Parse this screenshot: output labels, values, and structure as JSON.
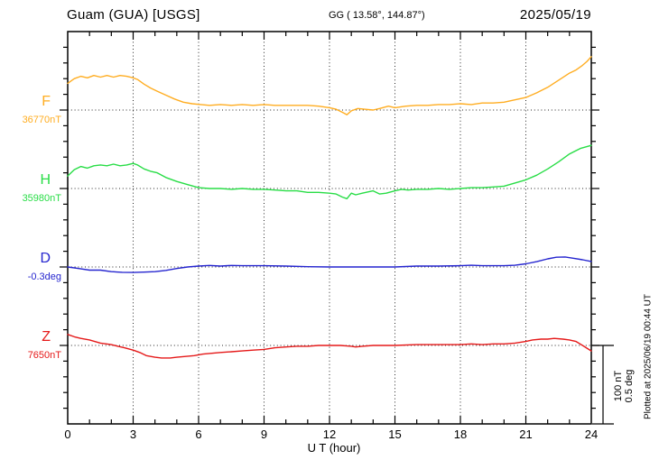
{
  "header": {
    "station": "Guam (GUA)  [USGS]",
    "coords": "GG ( 13.58°, 144.87°)",
    "date": "2025/05/19"
  },
  "scale_bar": {
    "line1": "100 nT",
    "line2": "0.5 deg"
  },
  "footer_note": "Plotted at 2025/06/19 00:44 UT",
  "chart_data": {
    "type": "line",
    "title": "Guam (GUA) [USGS]",
    "xlabel": "U T (hour)",
    "x_range": [
      0,
      24
    ],
    "x_ticks": [
      0,
      3,
      6,
      9,
      12,
      15,
      18,
      21,
      24
    ],
    "grid": "dotted vertical every 3 h, dotted horizontal at each trace reference level",
    "legend_position": "left margin, one colored label per trace",
    "scale_per_division": {
      "nT": 100,
      "deg": 0.5
    },
    "series": [
      {
        "name": "F",
        "reference_label": "36770nT",
        "unit": "nT",
        "color": "#FFAD21",
        "points": [
          [
            0,
            34
          ],
          [
            0.3,
            40
          ],
          [
            0.6,
            43
          ],
          [
            0.9,
            41
          ],
          [
            1.2,
            44
          ],
          [
            1.5,
            42
          ],
          [
            1.8,
            44
          ],
          [
            2.1,
            42
          ],
          [
            2.4,
            44
          ],
          [
            2.7,
            43
          ],
          [
            3.0,
            41
          ],
          [
            3.2,
            39
          ],
          [
            3.5,
            33
          ],
          [
            3.8,
            28
          ],
          [
            4.1,
            24
          ],
          [
            4.5,
            19
          ],
          [
            4.9,
            14
          ],
          [
            5.3,
            10
          ],
          [
            5.7,
            8
          ],
          [
            6.1,
            7
          ],
          [
            6.5,
            6
          ],
          [
            7,
            7
          ],
          [
            7.5,
            6
          ],
          [
            8,
            7
          ],
          [
            8.5,
            6
          ],
          [
            9,
            7
          ],
          [
            9.5,
            6
          ],
          [
            10,
            6
          ],
          [
            10.5,
            6
          ],
          [
            11,
            6
          ],
          [
            11.5,
            5
          ],
          [
            12,
            3
          ],
          [
            12.3,
            1
          ],
          [
            12.6,
            -3
          ],
          [
            12.8,
            -6
          ],
          [
            13,
            -1
          ],
          [
            13.3,
            2
          ],
          [
            13.6,
            1
          ],
          [
            14,
            0
          ],
          [
            14.3,
            2
          ],
          [
            14.7,
            5
          ],
          [
            15,
            3
          ],
          [
            15.5,
            5
          ],
          [
            16,
            6
          ],
          [
            16.5,
            6
          ],
          [
            17,
            7
          ],
          [
            17.5,
            7
          ],
          [
            18,
            8
          ],
          [
            18.5,
            7
          ],
          [
            19,
            9
          ],
          [
            19.5,
            9
          ],
          [
            20,
            10
          ],
          [
            20.5,
            13
          ],
          [
            21,
            16
          ],
          [
            21.5,
            22
          ],
          [
            22,
            29
          ],
          [
            22.5,
            38
          ],
          [
            23,
            47
          ],
          [
            23.3,
            51
          ],
          [
            23.6,
            57
          ],
          [
            23.8,
            62
          ],
          [
            24,
            68
          ]
        ]
      },
      {
        "name": "H",
        "reference_label": "35980nT",
        "unit": "nT",
        "color": "#28DD46",
        "points": [
          [
            0,
            16
          ],
          [
            0.3,
            24
          ],
          [
            0.6,
            28
          ],
          [
            0.9,
            26
          ],
          [
            1.2,
            29
          ],
          [
            1.5,
            30
          ],
          [
            1.8,
            29
          ],
          [
            2.1,
            31
          ],
          [
            2.4,
            29
          ],
          [
            2.7,
            30
          ],
          [
            3.0,
            32
          ],
          [
            3.2,
            30
          ],
          [
            3.5,
            25
          ],
          [
            3.8,
            22
          ],
          [
            4.1,
            20
          ],
          [
            4.5,
            14
          ],
          [
            5,
            9
          ],
          [
            5.5,
            5
          ],
          [
            6,
            1
          ],
          [
            6.5,
            0
          ],
          [
            7,
            0
          ],
          [
            7.5,
            -1
          ],
          [
            8,
            0
          ],
          [
            8.5,
            -1
          ],
          [
            9,
            -1
          ],
          [
            9.5,
            -2
          ],
          [
            10,
            -3
          ],
          [
            10.5,
            -3
          ],
          [
            11,
            -5
          ],
          [
            11.5,
            -5
          ],
          [
            12,
            -6
          ],
          [
            12.3,
            -7
          ],
          [
            12.6,
            -11
          ],
          [
            12.8,
            -13
          ],
          [
            13,
            -6
          ],
          [
            13.2,
            -8
          ],
          [
            13.5,
            -6
          ],
          [
            14,
            -3
          ],
          [
            14.3,
            -7
          ],
          [
            14.6,
            -6
          ],
          [
            15,
            -3
          ],
          [
            15.3,
            -1
          ],
          [
            15.6,
            -2
          ],
          [
            16,
            -1
          ],
          [
            16.5,
            -1
          ],
          [
            17,
            0
          ],
          [
            17.5,
            -1
          ],
          [
            18,
            0
          ],
          [
            18.5,
            1
          ],
          [
            19,
            1
          ],
          [
            19.5,
            2
          ],
          [
            20,
            3
          ],
          [
            20.5,
            7
          ],
          [
            21,
            11
          ],
          [
            21.5,
            17
          ],
          [
            22,
            25
          ],
          [
            22.5,
            34
          ],
          [
            23,
            44
          ],
          [
            23.5,
            51
          ],
          [
            24,
            55
          ]
        ]
      },
      {
        "name": "D",
        "reference_label": "-0.3deg",
        "unit": "deg",
        "color": "#2525CF",
        "points": [
          [
            0,
            0
          ],
          [
            0.5,
            -0.01
          ],
          [
            1,
            -0.02
          ],
          [
            1.5,
            -0.02
          ],
          [
            2,
            -0.03
          ],
          [
            2.5,
            -0.034
          ],
          [
            3,
            -0.035
          ],
          [
            3.5,
            -0.033
          ],
          [
            4,
            -0.03
          ],
          [
            4.5,
            -0.022
          ],
          [
            5,
            -0.01
          ],
          [
            5.5,
            0
          ],
          [
            6,
            0.006
          ],
          [
            6.5,
            0.01
          ],
          [
            7,
            0.006
          ],
          [
            7.5,
            0.01
          ],
          [
            8,
            0.008
          ],
          [
            9,
            0.008
          ],
          [
            10,
            0.006
          ],
          [
            11,
            0.002
          ],
          [
            12,
            0
          ],
          [
            13,
            0
          ],
          [
            14,
            0
          ],
          [
            15,
            0
          ],
          [
            16,
            0.006
          ],
          [
            17,
            0.006
          ],
          [
            18,
            0.008
          ],
          [
            18.5,
            0.011
          ],
          [
            19,
            0.008
          ],
          [
            19.5,
            0.008
          ],
          [
            20,
            0.008
          ],
          [
            20.5,
            0.011
          ],
          [
            21,
            0.02
          ],
          [
            21.5,
            0.034
          ],
          [
            22,
            0.052
          ],
          [
            22.4,
            0.062
          ],
          [
            22.8,
            0.064
          ],
          [
            23.2,
            0.055
          ],
          [
            23.6,
            0.046
          ],
          [
            24,
            0.035
          ]
        ]
      },
      {
        "name": "Z",
        "reference_label": "7650nT",
        "unit": "nT",
        "color": "#E51919",
        "points": [
          [
            0,
            14
          ],
          [
            0.3,
            11
          ],
          [
            0.6,
            9
          ],
          [
            1,
            7
          ],
          [
            1.5,
            3
          ],
          [
            2,
            1
          ],
          [
            2.3,
            -1
          ],
          [
            2.6,
            -3
          ],
          [
            3,
            -6
          ],
          [
            3.3,
            -9
          ],
          [
            3.6,
            -13
          ],
          [
            4,
            -15
          ],
          [
            4.3,
            -16
          ],
          [
            4.7,
            -16
          ],
          [
            5,
            -15
          ],
          [
            5.4,
            -14
          ],
          [
            5.8,
            -13
          ],
          [
            6.2,
            -11
          ],
          [
            6.6,
            -10
          ],
          [
            7,
            -9
          ],
          [
            7.5,
            -8
          ],
          [
            8,
            -7
          ],
          [
            8.5,
            -6
          ],
          [
            9,
            -5
          ],
          [
            9.5,
            -3
          ],
          [
            10,
            -2
          ],
          [
            10.5,
            -1
          ],
          [
            11,
            -1
          ],
          [
            11.5,
            0
          ],
          [
            12,
            0
          ],
          [
            12.5,
            0
          ],
          [
            13,
            -1
          ],
          [
            13.2,
            -2
          ],
          [
            13.5,
            -1
          ],
          [
            14,
            0
          ],
          [
            15,
            0
          ],
          [
            16,
            1
          ],
          [
            17,
            1
          ],
          [
            18,
            1
          ],
          [
            18.5,
            2
          ],
          [
            19,
            1
          ],
          [
            19.5,
            2
          ],
          [
            20,
            2
          ],
          [
            20.5,
            3
          ],
          [
            21,
            5
          ],
          [
            21.3,
            7
          ],
          [
            21.7,
            8
          ],
          [
            22,
            8
          ],
          [
            22.3,
            9
          ],
          [
            22.7,
            8
          ],
          [
            23,
            7
          ],
          [
            23.3,
            5
          ],
          [
            23.6,
            0
          ],
          [
            24,
            -7
          ]
        ]
      }
    ]
  }
}
